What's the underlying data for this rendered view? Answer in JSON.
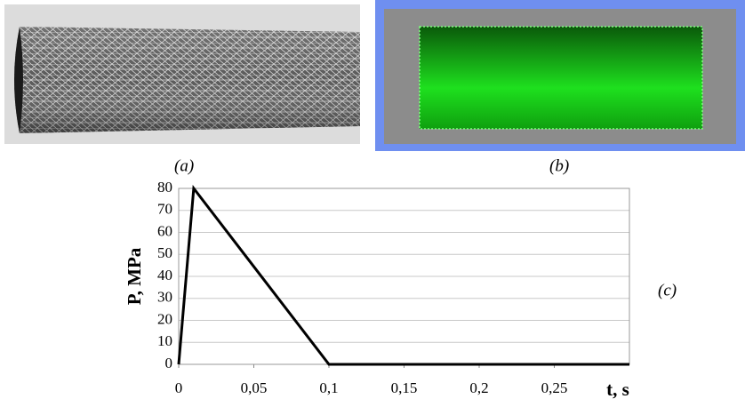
{
  "panels": [
    "(a)",
    "(b)",
    "(c)"
  ],
  "chart_data": {
    "type": "line",
    "x": [
      0,
      0.01,
      0.1,
      0.3
    ],
    "series": [
      {
        "color": "#000000",
        "values": [
          0,
          80,
          0,
          0
        ]
      }
    ],
    "x_label": "t, s",
    "y_label": "P, MPa",
    "xlim": [
      0,
      0.3
    ],
    "ylim": [
      0,
      80
    ],
    "xticks": [
      0,
      {
        "value": 0.05,
        "label": "0,05"
      },
      {
        "value": 0.1,
        "label": "0,1"
      },
      {
        "value": 0.15,
        "label": "0,15"
      },
      {
        "value": 0.2,
        "label": "0,2"
      },
      {
        "value": 0.25,
        "label": "0,25"
      }
    ],
    "yticks": [
      0,
      10,
      20,
      30,
      40,
      50,
      60,
      70,
      80
    ],
    "grid": true
  }
}
